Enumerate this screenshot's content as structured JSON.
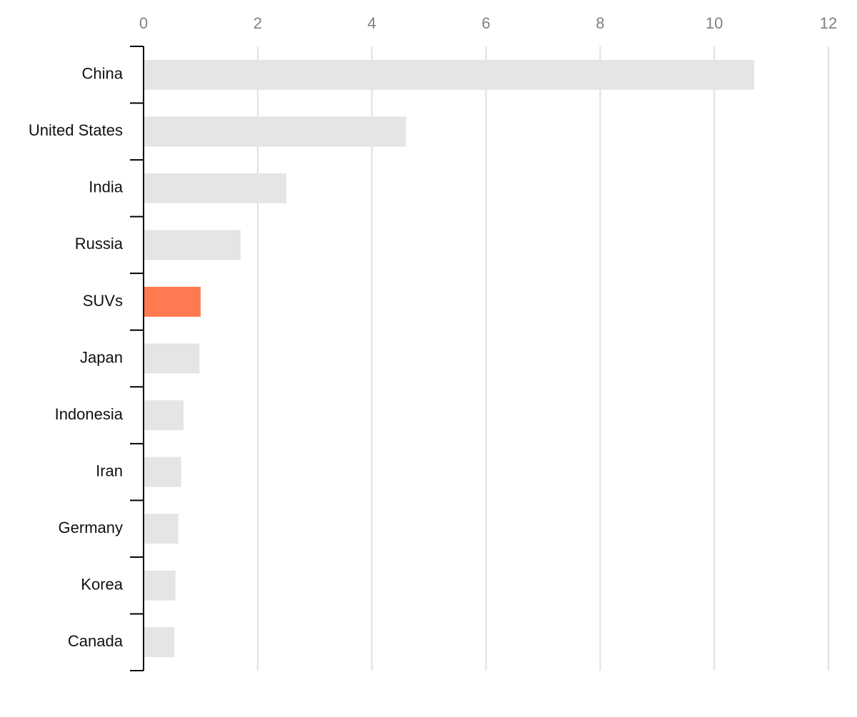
{
  "chart_data": {
    "type": "bar",
    "orientation": "horizontal",
    "categories": [
      "China",
      "United States",
      "India",
      "Russia",
      "SUVs",
      "Japan",
      "Indonesia",
      "Iran",
      "Germany",
      "Korea",
      "Canada"
    ],
    "values": [
      10.7,
      4.6,
      2.5,
      1.7,
      1.0,
      0.98,
      0.7,
      0.66,
      0.61,
      0.56,
      0.54
    ],
    "colors": [
      "#e5e5e5",
      "#e5e5e5",
      "#e5e5e5",
      "#e5e5e5",
      "#ff7a50",
      "#e5e5e5",
      "#e5e5e5",
      "#e5e5e5",
      "#e5e5e5",
      "#e5e5e5",
      "#e5e5e5"
    ],
    "xlim": [
      0,
      12
    ],
    "xticks": [
      0,
      2,
      4,
      6,
      8,
      10,
      12
    ],
    "grid": true
  }
}
